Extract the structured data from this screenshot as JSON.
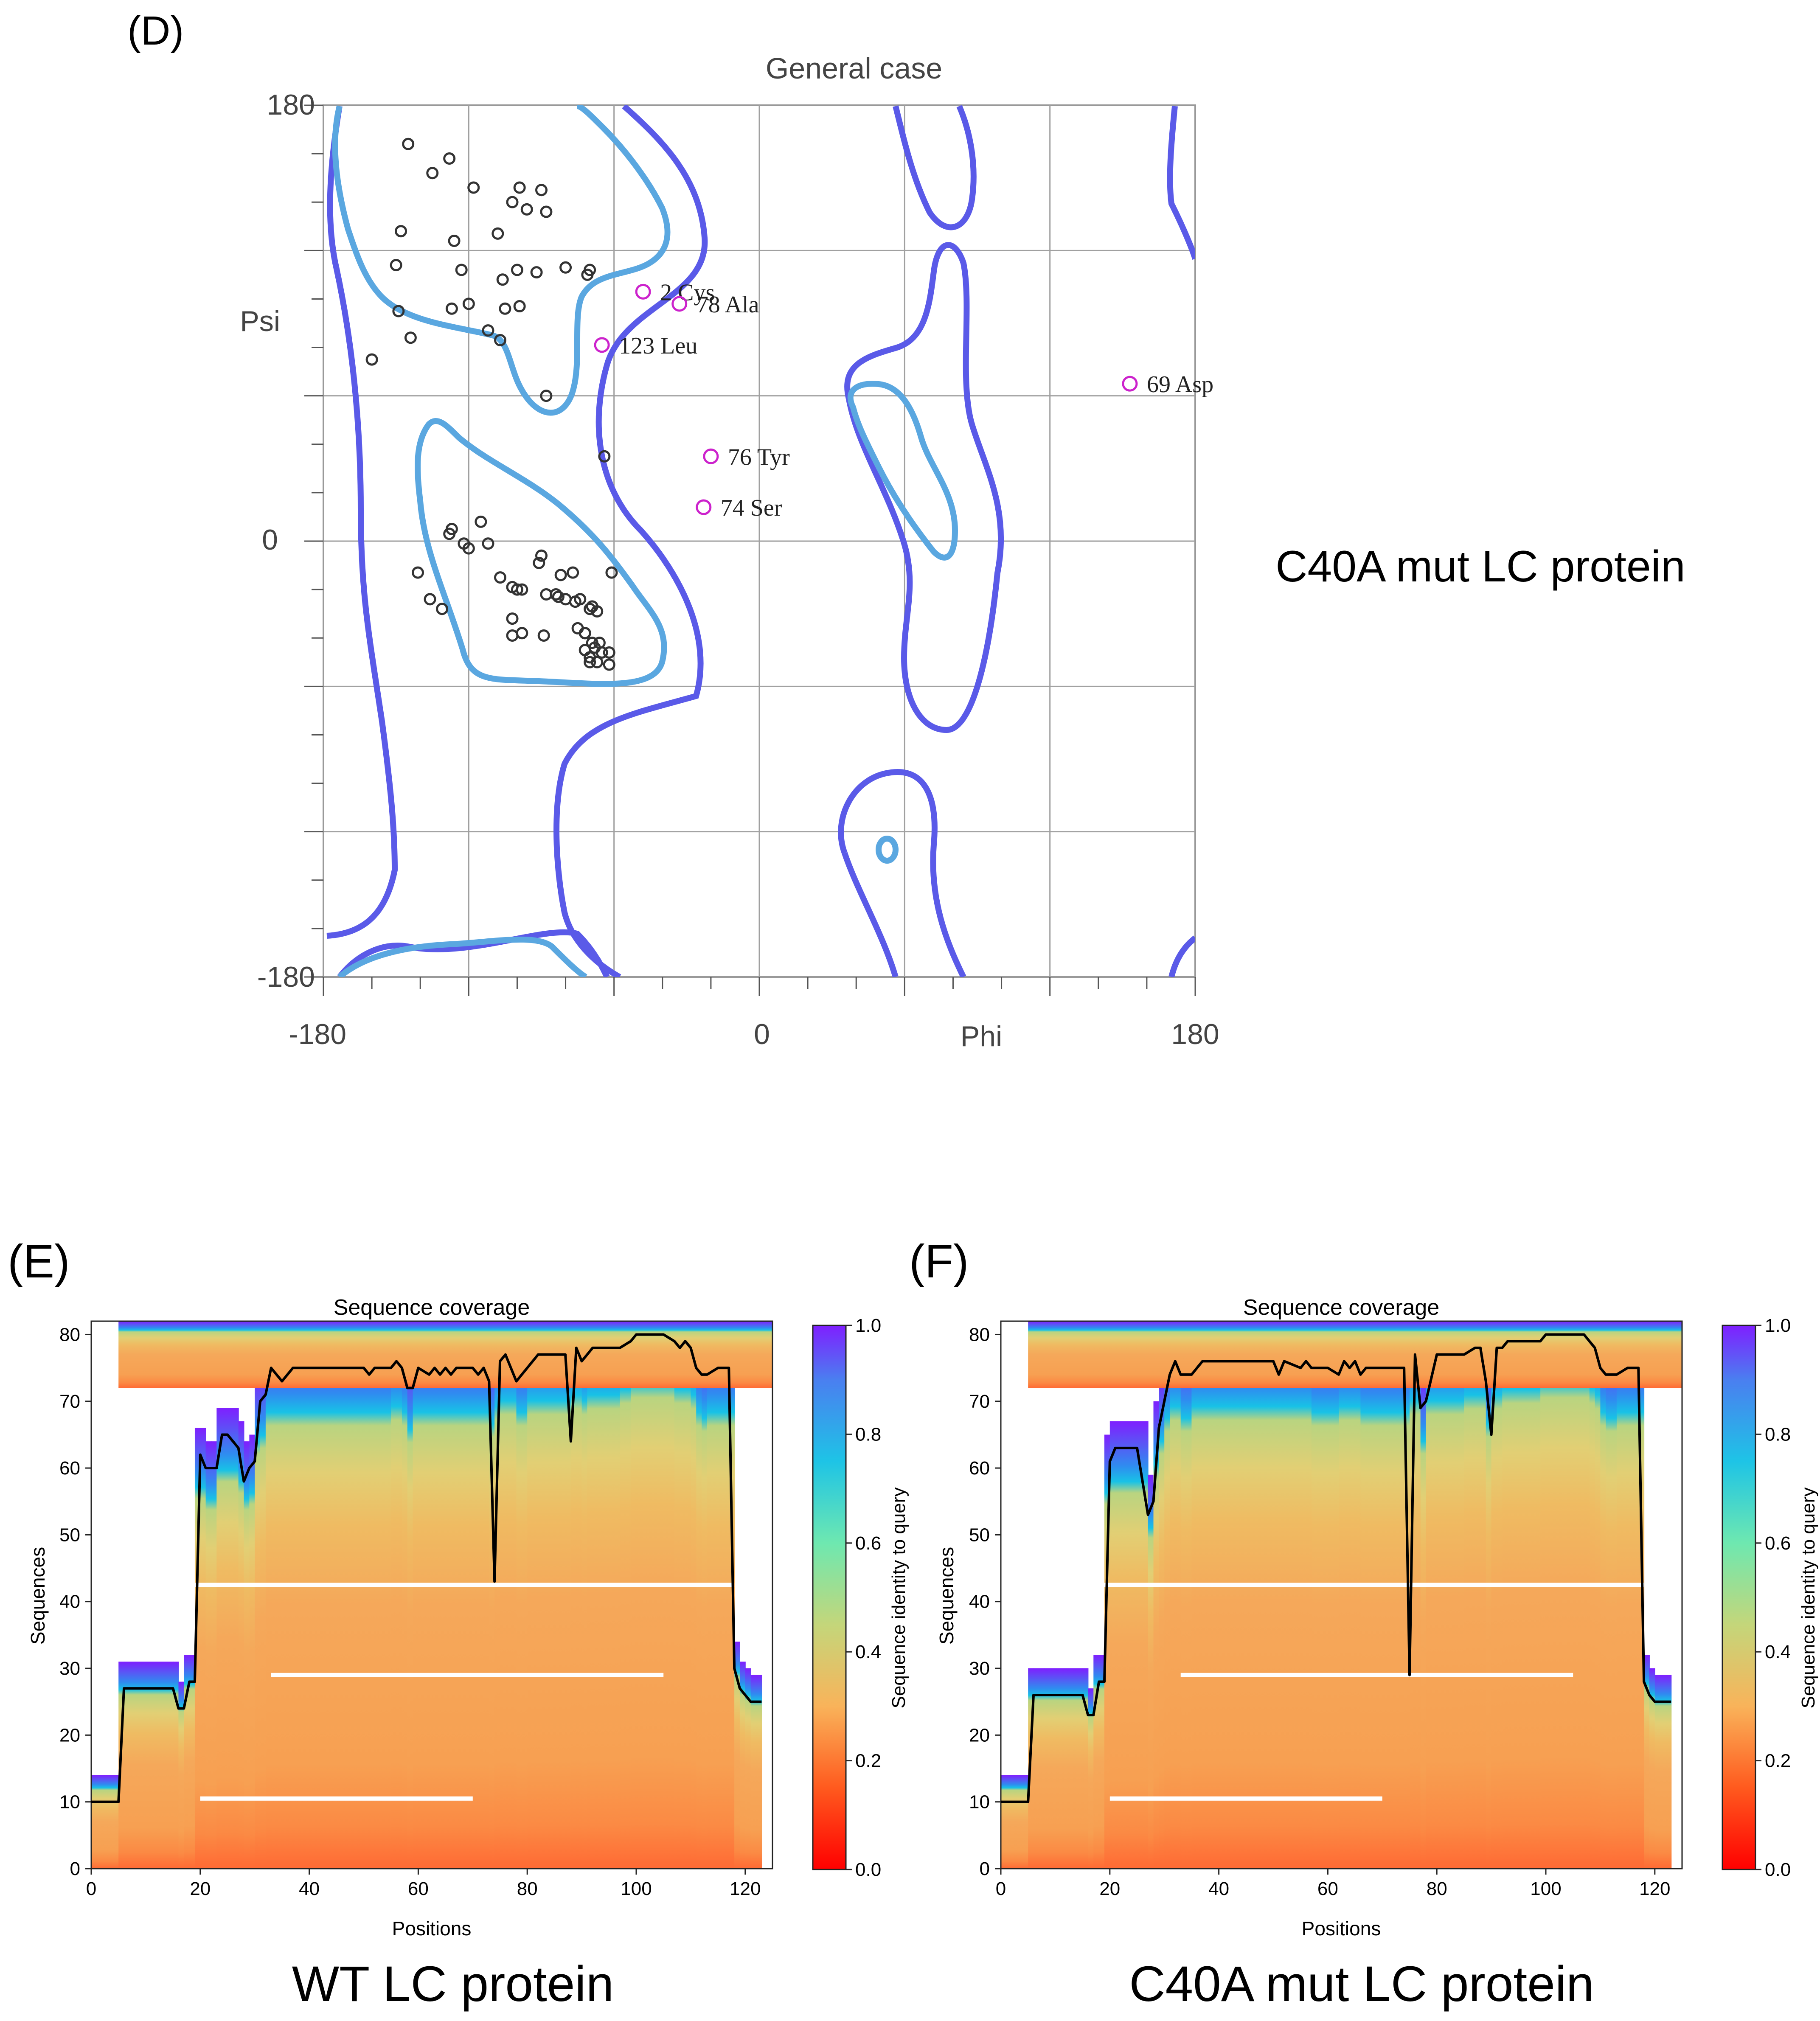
{
  "panels": {
    "d": {
      "letter": "(D)",
      "title": "General case",
      "caption": "C40A mut  LC protein",
      "x_axis": {
        "name": "Phi",
        "ticks": [
          "-180",
          "0",
          "180"
        ]
      },
      "y_axis": {
        "name": "Psi",
        "ticks": [
          "180",
          "0",
          "-180"
        ]
      }
    },
    "e": {
      "letter": "(E)",
      "title": "Sequence coverage",
      "caption": "WT LC protein",
      "x_axis": {
        "name": "Positions",
        "ticks": [
          "0",
          "20",
          "40",
          "60",
          "80",
          "100",
          "120"
        ]
      },
      "y_axis": {
        "name": "Sequences",
        "ticks": [
          "0",
          "10",
          "20",
          "30",
          "40",
          "50",
          "60",
          "70",
          "80"
        ]
      },
      "colorbar": {
        "name": "Sequence identity to query",
        "ticks": [
          "0.0",
          "0.2",
          "0.4",
          "0.6",
          "0.8",
          "1.0"
        ]
      }
    },
    "f": {
      "letter": "(F)",
      "title": "Sequence coverage",
      "caption": "C40A mut  LC protein",
      "x_axis": {
        "name": "Positions",
        "ticks": [
          "0",
          "20",
          "40",
          "60",
          "80",
          "100",
          "120"
        ]
      },
      "y_axis": {
        "name": "Sequences",
        "ticks": [
          "0",
          "10",
          "20",
          "30",
          "40",
          "50",
          "60",
          "70",
          "80"
        ]
      },
      "colorbar": {
        "name": "Sequence identity to query",
        "ticks": [
          "0.0",
          "0.2",
          "0.4",
          "0.6",
          "0.8",
          "1.0"
        ]
      }
    }
  },
  "colors": {
    "favoured": "#5aa7e0",
    "allowed": "#5a5ae8",
    "outlier": "#cc22cc",
    "residue": "#333333",
    "grid": "#a0a0a0"
  },
  "chart_data": [
    {
      "type": "scatter",
      "title": "General case",
      "xlabel": "Phi",
      "ylabel": "Psi",
      "xlim": [
        -180,
        180
      ],
      "ylim": [
        -180,
        180
      ],
      "series": [
        {
          "name": "residues",
          "points": [
            [
              -145,
              164
            ],
            [
              -135,
              152
            ],
            [
              -128,
              158
            ],
            [
              -118,
              146
            ],
            [
              -102,
              140
            ],
            [
              -99,
              146
            ],
            [
              -90,
              145
            ],
            [
              -96,
              137
            ],
            [
              -88,
              136
            ],
            [
              -148,
              128
            ],
            [
              -126,
              124
            ],
            [
              -108,
              127
            ],
            [
              -150,
              114
            ],
            [
              -123,
              112
            ],
            [
              -100,
              112
            ],
            [
              -92,
              111
            ],
            [
              -106,
              108
            ],
            [
              -80,
              113
            ],
            [
              -71,
              110
            ],
            [
              -70,
              112
            ],
            [
              -144,
              84
            ],
            [
              -107,
              83
            ],
            [
              -127,
              96
            ],
            [
              -105,
              96
            ],
            [
              -120,
              98
            ],
            [
              -99,
              97
            ],
            [
              -149,
              95
            ],
            [
              -112,
              87
            ],
            [
              -160,
              75
            ],
            [
              -88,
              60
            ],
            [
              -64,
              35
            ],
            [
              -127,
              5
            ],
            [
              -120,
              -3
            ],
            [
              -128,
              3
            ],
            [
              -115,
              8
            ],
            [
              -122,
              -1
            ],
            [
              -112,
              -1
            ],
            [
              -107,
              -15
            ],
            [
              -102,
              -19
            ],
            [
              -98,
              -20
            ],
            [
              -90,
              -6
            ],
            [
              -91,
              -9
            ],
            [
              -88,
              -22
            ],
            [
              -80,
              -24
            ],
            [
              -84,
              -22
            ],
            [
              -83,
              -23
            ],
            [
              -82,
              -14
            ],
            [
              -76,
              -25
            ],
            [
              -74,
              -24
            ],
            [
              -77,
              -13
            ],
            [
              -70,
              -28
            ],
            [
              -69,
              -27
            ],
            [
              -67,
              -29
            ],
            [
              -61,
              -13
            ],
            [
              -75,
              -36
            ],
            [
              -72,
              -38
            ],
            [
              -69,
              -42
            ],
            [
              -66,
              -42
            ],
            [
              -68,
              -44
            ],
            [
              -70,
              -48
            ],
            [
              -65,
              -46
            ],
            [
              -62,
              -46
            ],
            [
              -70,
              -50
            ],
            [
              -62,
              -51
            ],
            [
              -67,
              -50
            ],
            [
              -102,
              -39
            ],
            [
              -98,
              -38
            ],
            [
              -136,
              -24
            ],
            [
              -141,
              -13
            ],
            [
              -89,
              -39
            ],
            [
              -102,
              -32
            ],
            [
              -72,
              -38
            ],
            [
              -100,
              -20
            ],
            [
              -131,
              -28
            ],
            [
              -72,
              -45
            ]
          ]
        },
        {
          "name": "outliers",
          "points": [
            {
              "phi": -48,
              "psi": 103,
              "label": "2 Cys"
            },
            {
              "phi": -33,
              "psi": 98,
              "label": "78 Ala"
            },
            {
              "phi": -65,
              "psi": 81,
              "label": "123 Leu"
            },
            {
              "phi": 153,
              "psi": 65,
              "label": "69 Asp"
            },
            {
              "phi": -20,
              "psi": 35,
              "label": "76 Tyr"
            },
            {
              "phi": -23,
              "psi": 14,
              "label": "74 Ser"
            }
          ]
        }
      ]
    },
    {
      "type": "heatmap",
      "title": "Sequence coverage",
      "xlabel": "Positions",
      "ylabel": "Sequences",
      "xlim": [
        0,
        125
      ],
      "ylim": [
        0,
        82
      ],
      "colorbar_label": "Sequence identity to query",
      "colorbar_range": [
        0.0,
        1.0
      ],
      "coverage_line": {
        "x": [
          0,
          5,
          6,
          8,
          15,
          16,
          17,
          18,
          19,
          20,
          21,
          22,
          23,
          24,
          25,
          27,
          28,
          29,
          30,
          31,
          32,
          33,
          35,
          37,
          42,
          50,
          51,
          52,
          55,
          56,
          57,
          58,
          59,
          60,
          62,
          63,
          64,
          65,
          66,
          67,
          70,
          71,
          72,
          73,
          74,
          75,
          76,
          78,
          80,
          82,
          83,
          84,
          85,
          86,
          87,
          88,
          89,
          90,
          91,
          92,
          93,
          95,
          97,
          99,
          100,
          103,
          105,
          107,
          108,
          109,
          110,
          111,
          112,
          113,
          115,
          116,
          117,
          118,
          119,
          120,
          121,
          122,
          123
        ],
        "y": [
          10,
          10,
          27,
          27,
          27,
          24,
          24,
          28,
          28,
          62,
          60,
          60,
          60,
          65,
          65,
          63,
          58,
          60,
          61,
          70,
          71,
          75,
          73,
          75,
          75,
          75,
          74,
          75,
          75,
          76,
          75,
          72,
          72,
          75,
          74,
          75,
          74,
          75,
          74,
          75,
          75,
          74,
          75,
          73,
          43,
          76,
          77,
          73,
          75,
          77,
          77,
          77,
          77,
          77,
          77,
          64,
          78,
          76,
          77,
          78,
          78,
          78,
          78,
          79,
          80,
          80,
          80,
          79,
          78,
          79,
          78,
          75,
          74,
          74,
          75,
          75,
          75,
          30,
          27,
          26,
          25,
          25,
          25
        ]
      }
    },
    {
      "type": "heatmap",
      "title": "Sequence coverage",
      "xlabel": "Positions",
      "ylabel": "Sequences",
      "xlim": [
        0,
        125
      ],
      "ylim": [
        0,
        82
      ],
      "colorbar_label": "Sequence identity to query",
      "colorbar_range": [
        0.0,
        1.0
      ],
      "coverage_line": {
        "x": [
          0,
          5,
          6,
          8,
          15,
          16,
          17,
          18,
          19,
          20,
          21,
          22,
          23,
          24,
          25,
          27,
          28,
          29,
          30,
          31,
          32,
          33,
          35,
          37,
          42,
          50,
          51,
          52,
          55,
          56,
          57,
          58,
          59,
          60,
          62,
          63,
          64,
          65,
          66,
          67,
          70,
          71,
          72,
          73,
          74,
          75,
          76,
          77,
          78,
          80,
          82,
          83,
          85,
          87,
          88,
          89,
          90,
          91,
          92,
          93,
          95,
          97,
          99,
          100,
          103,
          105,
          107,
          108,
          109,
          110,
          111,
          112,
          113,
          115,
          116,
          117,
          118,
          119,
          120,
          121,
          122,
          123
        ],
        "y": [
          10,
          10,
          26,
          26,
          26,
          23,
          23,
          28,
          28,
          61,
          63,
          63,
          63,
          63,
          63,
          53,
          55,
          66,
          70,
          74,
          76,
          74,
          74,
          76,
          76,
          76,
          74,
          76,
          75,
          76,
          75,
          75,
          75,
          75,
          74,
          76,
          75,
          76,
          74,
          75,
          75,
          75,
          75,
          75,
          75,
          29,
          77,
          69,
          70,
          77,
          77,
          77,
          77,
          78,
          78,
          73,
          65,
          78,
          78,
          79,
          79,
          79,
          79,
          80,
          80,
          80,
          80,
          79,
          78,
          75,
          74,
          74,
          74,
          75,
          75,
          75,
          28,
          26,
          25,
          25,
          25,
          25
        ]
      }
    }
  ]
}
